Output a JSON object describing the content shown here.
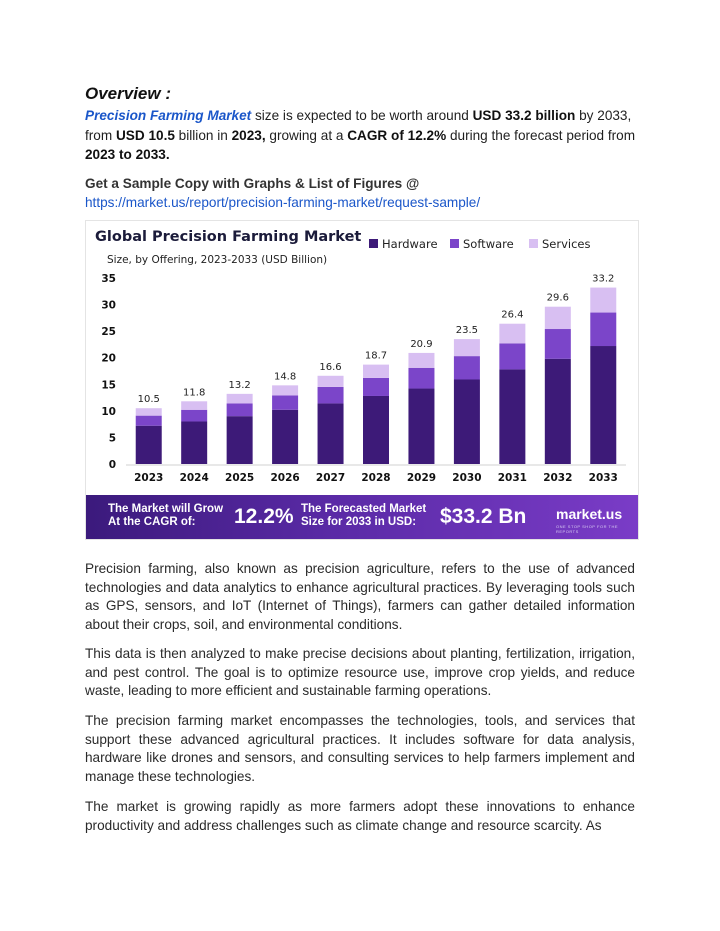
{
  "overview": {
    "title": "Overview :",
    "brand": "Precision Farming Market",
    "t1": " size is expected to be worth around ",
    "b1": "USD 33.2 billion",
    "t2": " by 2033, from ",
    "b2": "USD 10.5",
    "t3": " billion in ",
    "b3": "2023,",
    "t4": " growing at a ",
    "b4": "CAGR of 12.2%",
    "t5": " during the forecast period from ",
    "b5": "2023 to 2033."
  },
  "sample": {
    "heading": "Get a Sample Copy with Graphs & List of Figures @",
    "link": "https://market.us/report/precision-farming-market/request-sample/"
  },
  "chart_data": {
    "type": "bar",
    "stacked": true,
    "title": "Global Precision Farming Market",
    "subtitle": "Size, by Offering, 2023-2033 (USD Billion)",
    "categories": [
      "2023",
      "2024",
      "2025",
      "2026",
      "2027",
      "2028",
      "2029",
      "2030",
      "2031",
      "2032",
      "2033"
    ],
    "series": [
      {
        "name": "Hardware",
        "color": "#3d1a78",
        "values": [
          7.2,
          8.0,
          9.0,
          10.2,
          11.4,
          12.8,
          14.2,
          15.9,
          17.8,
          19.8,
          22.2
        ]
      },
      {
        "name": "Software",
        "color": "#7b45c9",
        "values": [
          1.9,
          2.2,
          2.4,
          2.7,
          3.1,
          3.4,
          3.9,
          4.4,
          4.9,
          5.6,
          6.3
        ]
      },
      {
        "name": "Services",
        "color": "#d8bff2",
        "values": [
          1.4,
          1.6,
          1.8,
          1.9,
          2.1,
          2.5,
          2.8,
          3.2,
          3.7,
          4.2,
          4.7
        ]
      }
    ],
    "totals": [
      "10.5",
      "11.8",
      "13.2",
      "14.8",
      "16.6",
      "18.7",
      "20.9",
      "23.5",
      "26.4",
      "29.6",
      "33.2"
    ],
    "yticks": [
      "0",
      "5",
      "10",
      "15",
      "20",
      "25",
      "30",
      "35"
    ],
    "ylim": [
      0,
      35
    ],
    "legend_position": "top-right",
    "banner": {
      "cagr_label_1": "The Market will Grow",
      "cagr_label_2": "At the CAGR of:",
      "cagr_value": "12.2%",
      "forecast_label_1": "The Forecasted Market",
      "forecast_label_2": "Size for 2033 in USD:",
      "forecast_value": "$33.2 Bn",
      "logo": "market.us",
      "logo_tagline": "ONE STOP SHOP FOR THE REPORTS"
    }
  },
  "paragraphs": [
    "Precision farming, also known as precision agriculture, refers to the use of advanced technologies and data analytics to enhance agricultural practices. By leveraging tools such as GPS, sensors, and IoT (Internet of Things), farmers can gather detailed information about their crops, soil, and environmental conditions.",
    "This data is then analyzed to make precise decisions about planting, fertilization, irrigation, and pest control. The goal is to optimize resource use, improve crop yields, and reduce waste, leading to more efficient and sustainable farming operations.",
    "The precision farming market encompasses the technologies, tools, and services that support these advanced agricultural practices. It includes software for data analysis, hardware like drones and sensors, and consulting services to help farmers implement and manage these technologies.",
    "The market is growing rapidly as more farmers adopt these innovations to enhance productivity and address challenges such as climate change and resource scarcity. As"
  ]
}
